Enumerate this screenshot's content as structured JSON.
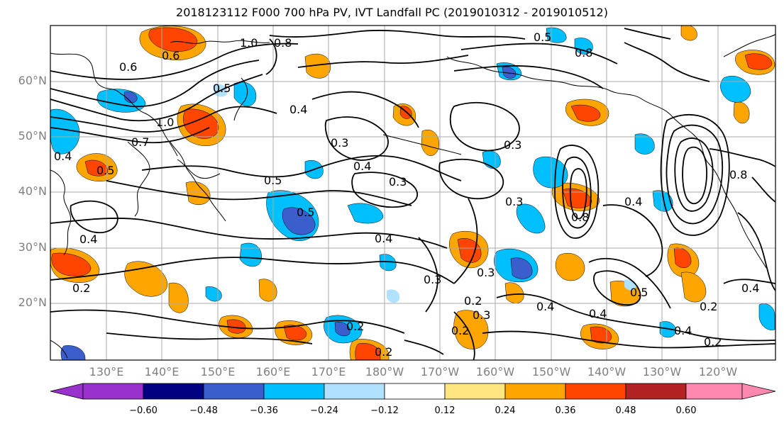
{
  "title": "2018123112 F000 700 hPa PV, IVT Landfall PC (2019010312 - 2019010512)",
  "lat_labels": [
    "60°N",
    "50°N",
    "40°N",
    "30°N",
    "20°N"
  ],
  "lon_labels": [
    "130°E",
    "140°E",
    "150°E",
    "160°E",
    "170°E",
    "180°W",
    "170°W",
    "160°W",
    "150°W",
    "140°W",
    "130°W",
    "120°W"
  ],
  "colorbar": {
    "ticks": [
      "−0.60",
      "−0.48",
      "−0.36",
      "−0.24",
      "−0.12",
      "0.12",
      "0.24",
      "0.36",
      "0.48",
      "0.60"
    ],
    "colors": [
      "#9932cc",
      "#000080",
      "#3a5fcd",
      "#00bfff",
      "#b0e2ff",
      "#ffffff",
      "#ffe680",
      "#ffa500",
      "#ff4500",
      "#b22222",
      "#ff88b0"
    ]
  },
  "contour_labels": [
    "1.0",
    "0.8",
    "0.6",
    "0.5",
    "0.4",
    "0.7",
    "1.0",
    "0.5",
    "0.4",
    "0.3",
    "0.4",
    "0.5",
    "0.3",
    "0.4",
    "0.3",
    "0.4",
    "0.5",
    "0.3",
    "0.2",
    "0.2",
    "0.2",
    "0.3",
    "0.3",
    "0.2",
    "0.4",
    "0.4",
    "0.5",
    "0.2",
    "0.4",
    "0.2",
    "0.4",
    "0.4",
    "0.3",
    "0.8",
    "0.8",
    "0.5",
    "0.2",
    "0.6",
    "0.8"
  ]
}
